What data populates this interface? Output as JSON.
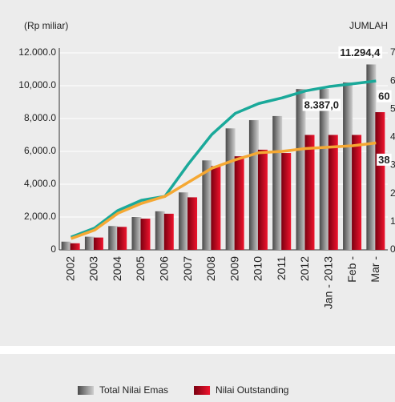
{
  "chart_data": {
    "type": "bar_line",
    "y_axis_label": "(Rp miliar)",
    "y2_axis_label": "JUMLAH",
    "categories": [
      "2002",
      "2003",
      "2004",
      "2005",
      "2006",
      "2007",
      "2008",
      "2009",
      "2010",
      "2011",
      "2012",
      "Jan - 2013",
      "Feb -",
      "Mar -"
    ],
    "series": [
      {
        "name": "Total Nilai Emas",
        "color": "#8a8a8a",
        "kind": "bar",
        "values": [
          500,
          800,
          1450,
          2000,
          2350,
          3500,
          5450,
          7400,
          7900,
          8150,
          9800,
          9800,
          10200,
          11294.4
        ],
        "value_labels": [
          null,
          null,
          null,
          null,
          null,
          null,
          null,
          null,
          null,
          null,
          null,
          null,
          null,
          "11.294,4"
        ]
      },
      {
        "name": "Nilai Outstanding",
        "color": "#d0142c",
        "kind": "bar",
        "values": [
          400,
          750,
          1400,
          1900,
          2200,
          3200,
          5100,
          5700,
          6100,
          5900,
          7000,
          7000,
          7000,
          8387.0
        ],
        "value_labels": [
          null,
          null,
          null,
          null,
          null,
          null,
          null,
          null,
          null,
          null,
          null,
          null,
          null,
          "8.387,0"
        ]
      },
      {
        "color": "#1aa99a",
        "kind": "line",
        "axis": "y2",
        "values": [
          4.5,
          7.7,
          14,
          17.6,
          19,
          30.5,
          41,
          48.5,
          52,
          54,
          56.5,
          58,
          59,
          60
        ],
        "value_labels": [
          null,
          null,
          null,
          null,
          null,
          null,
          null,
          null,
          null,
          null,
          null,
          null,
          null,
          "60"
        ]
      },
      {
        "color": "#f5a833",
        "kind": "line",
        "axis": "y2",
        "values": [
          4,
          7,
          13,
          16.5,
          19,
          24,
          29,
          32,
          34.5,
          35,
          36,
          36.5,
          37,
          38
        ],
        "value_labels": [
          null,
          null,
          null,
          null,
          null,
          null,
          null,
          null,
          null,
          null,
          null,
          null,
          null,
          "38"
        ]
      }
    ],
    "ylim": [
      0,
      12000
    ],
    "yticks": [
      0,
      {
        "value": 2000,
        "label": "2,000.0"
      },
      {
        "value": 4000,
        "label": "4,000.0"
      },
      {
        "value": 6000,
        "label": "6,000.0"
      },
      {
        "value": 8000,
        "label": "8,000.0"
      },
      {
        "value": 10000,
        "label": "10,000.0"
      },
      {
        "value": 12000,
        "label": "12.000.0"
      }
    ],
    "y2lim": [
      0,
      70
    ],
    "y2ticks": [
      0,
      {
        "value": 10,
        "label": "1"
      },
      {
        "value": 20,
        "label": "2"
      },
      {
        "value": 30,
        "label": "3"
      },
      {
        "value": 40,
        "label": "4"
      },
      {
        "value": 50,
        "label": "5"
      },
      {
        "value": 60,
        "label": "6"
      },
      {
        "value": 70,
        "label": "7"
      }
    ],
    "grid": true
  }
}
